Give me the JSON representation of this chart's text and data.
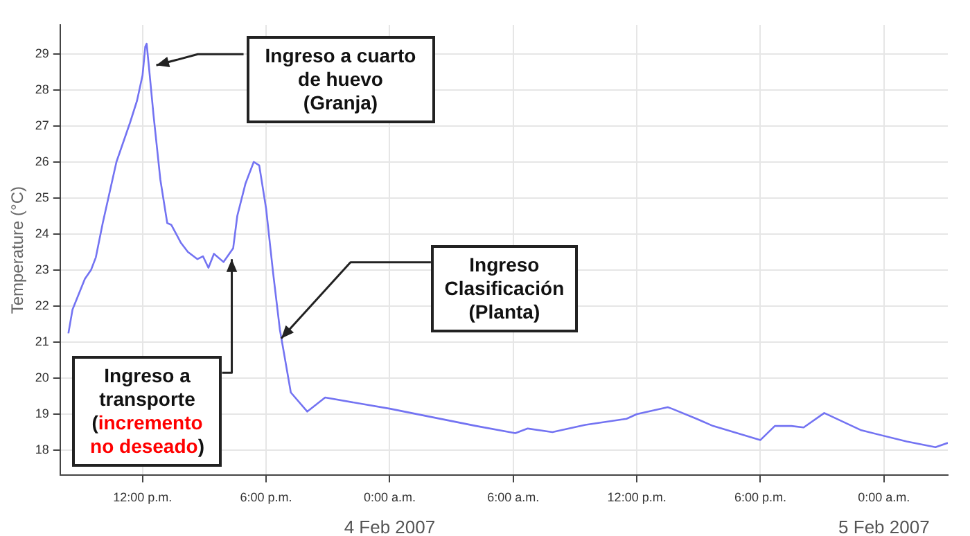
{
  "chart_data": {
    "type": "line",
    "ylabel": "Temperature (°C)",
    "x": [
      "2007-02-03T08:24",
      "2007-02-03T08:36",
      "2007-02-03T09:12",
      "2007-02-03T09:30",
      "2007-02-03T09:44",
      "2007-02-03T10:04",
      "2007-02-03T10:44",
      "2007-02-03T11:24",
      "2007-02-03T11:44",
      "2007-02-03T12:00",
      "2007-02-03T12:08",
      "2007-02-03T12:12",
      "2007-02-03T12:20",
      "2007-02-03T12:32",
      "2007-02-03T12:52",
      "2007-02-03T13:12",
      "2007-02-03T13:24",
      "2007-02-03T13:52",
      "2007-02-03T14:12",
      "2007-02-03T14:40",
      "2007-02-03T14:56",
      "2007-02-03T15:12",
      "2007-02-03T15:28",
      "2007-02-03T15:56",
      "2007-02-03T16:24",
      "2007-02-03T16:36",
      "2007-02-03T17:00",
      "2007-02-03T17:24",
      "2007-02-03T17:40",
      "2007-02-03T18:00",
      "2007-02-03T18:20",
      "2007-02-03T18:40",
      "2007-02-03T19:12",
      "2007-02-03T20:00",
      "2007-02-03T20:52",
      "2007-02-04T00:00",
      "2007-02-04T04:12",
      "2007-02-04T06:06",
      "2007-02-04T06:42",
      "2007-02-04T07:54",
      "2007-02-04T09:30",
      "2007-02-04T11:30",
      "2007-02-04T12:00",
      "2007-02-04T13:30",
      "2007-02-04T13:42",
      "2007-02-04T14:54",
      "2007-02-04T15:42",
      "2007-02-04T18:00",
      "2007-02-04T18:42",
      "2007-02-04T19:30",
      "2007-02-04T20:06",
      "2007-02-04T21:06",
      "2007-02-04T22:54",
      "2007-02-05T01:06",
      "2007-02-05T02:30",
      "2007-02-05T03:06"
    ],
    "series": [
      {
        "color": "#7373f2",
        "values": [
          21.24,
          21.9,
          22.75,
          23.0,
          23.35,
          24.3,
          26.0,
          27.1,
          27.7,
          28.4,
          29.2,
          29.28,
          28.5,
          27.3,
          25.5,
          24.3,
          24.25,
          23.75,
          23.5,
          23.3,
          23.38,
          23.06,
          23.45,
          23.22,
          23.6,
          24.5,
          25.4,
          26.0,
          25.9,
          24.7,
          22.95,
          21.35,
          19.6,
          19.07,
          19.46,
          19.15,
          18.67,
          18.47,
          18.6,
          18.5,
          18.7,
          18.87,
          19.0,
          19.19,
          19.15,
          18.87,
          18.67,
          18.28,
          18.67,
          18.67,
          18.63,
          19.03,
          18.55,
          18.24,
          18.08,
          18.2
        ]
      }
    ],
    "xlim": [
      "2007-02-03T08:00",
      "2007-02-05T03:06"
    ],
    "xticks": [
      {
        "value": "2007-02-03T12:00",
        "label": "12:00 p.m."
      },
      {
        "value": "2007-02-03T18:00",
        "label": "6:00 p.m."
      },
      {
        "value": "2007-02-04T00:00",
        "label": "0:00 a.m."
      },
      {
        "value": "2007-02-04T06:00",
        "label": "6:00 a.m."
      },
      {
        "value": "2007-02-04T12:00",
        "label": "12:00 p.m."
      },
      {
        "value": "2007-02-04T18:00",
        "label": "6:00 p.m."
      },
      {
        "value": "2007-02-05T00:00",
        "label": "0:00 a.m."
      }
    ],
    "ylim": [
      17.3,
      29.8
    ],
    "yticks": [
      18,
      19,
      20,
      21,
      22,
      23,
      24,
      25,
      26,
      27,
      28,
      29
    ],
    "grid": true,
    "legend": false,
    "marker": "none",
    "line_style": "solid",
    "annotations": [
      "4 Feb 2007",
      "5 Feb 2007",
      {
        "text": "Ingreso a cuarto de huevo (Granja)",
        "x": "2007-02-03T12:40",
        "y": 28.68
      },
      {
        "text": "Ingreso Clasificación (Planta)",
        "x": "2007-02-03T18:44",
        "y": 21.1
      },
      {
        "text": "Ingreso a transporte (incremento no deseado)",
        "x": "2007-02-03T16:20",
        "y": 23.3
      }
    ]
  }
}
